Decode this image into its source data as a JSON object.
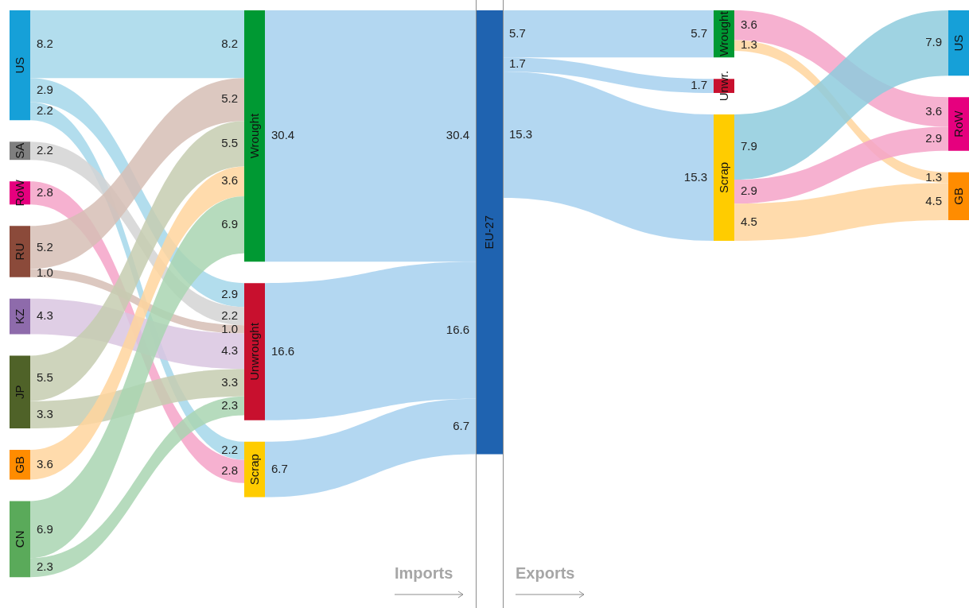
{
  "chart_data": {
    "type": "other",
    "categories": [
      "US",
      "SA",
      "RoW",
      "RU",
      "KZ",
      "JP",
      "GB",
      "CN",
      "Wrought",
      "Unwrought",
      "Scrap",
      "EU-27",
      "Wrought",
      "Unwr.",
      "Scrap",
      "US",
      "RoW",
      "GB"
    ],
    "colors": [
      "#16a0d8",
      "#7f7f7f",
      "#e6007e",
      "#8b4a3a",
      "#8e6bab",
      "#4f6228",
      "#ff8c00",
      "#5aaa5a",
      "#009933",
      "#c8102e",
      "#ffcc00",
      "#1f63b0",
      "#009933",
      "#c8102e",
      "#ffcc00",
      "#16a0d8",
      "#e6007e",
      "#ff8c00"
    ],
    "series": [
      {
        "color": "#a5d7ea",
        "values": [
          null,
          null,
          null,
          null,
          null,
          null,
          null,
          null,
          8.2,
          2.9,
          2.2,
          null,
          null,
          null,
          null,
          null,
          null,
          null
        ],
        "value_labels": [
          null,
          null,
          null,
          null,
          null,
          null,
          null,
          null,
          "8.2",
          "2.9",
          "2.2",
          null,
          null,
          null,
          null,
          null,
          null,
          null
        ]
      },
      {
        "color": "#d3d3d3",
        "values": [
          null,
          null,
          null,
          null,
          null,
          null,
          null,
          null,
          null,
          2.2,
          null,
          null,
          null,
          null,
          null,
          null,
          null,
          null
        ],
        "value_labels": [
          null,
          null,
          null,
          null,
          null,
          null,
          null,
          null,
          null,
          "2.2",
          null,
          null,
          null,
          null,
          null,
          null,
          null,
          null
        ]
      },
      {
        "color": "#f5a3c8",
        "values": [
          null,
          null,
          null,
          null,
          null,
          null,
          null,
          null,
          null,
          null,
          2.8,
          null,
          null,
          null,
          null,
          null,
          null,
          null
        ],
        "value_labels": [
          null,
          null,
          null,
          null,
          null,
          null,
          null,
          null,
          null,
          null,
          "2.8",
          null,
          null,
          null,
          null,
          null,
          null,
          null
        ]
      },
      {
        "color": "#d6beb5",
        "values": [
          null,
          null,
          null,
          null,
          null,
          null,
          null,
          null,
          5.2,
          1.0,
          null,
          null,
          null,
          null,
          null,
          null,
          null,
          null
        ],
        "value_labels": [
          null,
          null,
          null,
          null,
          null,
          null,
          null,
          null,
          "5.2",
          "1.0",
          null,
          null,
          null,
          null,
          null,
          null,
          null,
          null
        ]
      },
      {
        "color": "#d9c5e0",
        "values": [
          null,
          null,
          null,
          null,
          null,
          null,
          null,
          null,
          null,
          4.3,
          null,
          null,
          null,
          null,
          null,
          null,
          null,
          null
        ],
        "value_labels": [
          null,
          null,
          null,
          null,
          null,
          null,
          null,
          null,
          null,
          "4.3",
          null,
          null,
          null,
          null,
          null,
          null,
          null,
          null
        ]
      },
      {
        "color": "#c5cdb0",
        "values": [
          null,
          null,
          null,
          null,
          null,
          null,
          null,
          null,
          5.5,
          3.3,
          null,
          null,
          null,
          null,
          null,
          null,
          null,
          null
        ],
        "value_labels": [
          null,
          null,
          null,
          null,
          null,
          null,
          null,
          null,
          "5.5",
          "3.3",
          null,
          null,
          null,
          null,
          null,
          null,
          null,
          null
        ]
      },
      {
        "color": "#ffd59e",
        "values": [
          null,
          null,
          null,
          null,
          null,
          null,
          null,
          null,
          3.6,
          null,
          null,
          null,
          null,
          null,
          null,
          null,
          null,
          null
        ],
        "value_labels": [
          null,
          null,
          null,
          null,
          null,
          null,
          null,
          null,
          "3.6",
          null,
          null,
          null,
          null,
          null,
          null,
          null,
          null,
          null
        ]
      },
      {
        "color": "#a9d5b2",
        "values": [
          null,
          null,
          null,
          null,
          null,
          null,
          null,
          null,
          6.9,
          2.3,
          null,
          null,
          null,
          null,
          null,
          null,
          null,
          null
        ],
        "value_labels": [
          null,
          null,
          null,
          null,
          null,
          null,
          null,
          null,
          "6.9",
          "2.3",
          null,
          null,
          null,
          null,
          null,
          null,
          null,
          null
        ]
      },
      {
        "color": "#a6d0ef",
        "values": [
          null,
          null,
          null,
          null,
          null,
          null,
          null,
          null,
          null,
          null,
          null,
          30.4,
          null,
          null,
          null,
          null,
          null,
          null
        ],
        "value_labels": [
          null,
          null,
          null,
          null,
          null,
          null,
          null,
          null,
          null,
          null,
          null,
          "30.4",
          null,
          null,
          null,
          null,
          null,
          null
        ]
      },
      {
        "color": "#a6d0ef",
        "values": [
          null,
          null,
          null,
          null,
          null,
          null,
          null,
          null,
          null,
          null,
          null,
          16.6,
          null,
          null,
          null,
          null,
          null,
          null
        ],
        "value_labels": [
          null,
          null,
          null,
          null,
          null,
          null,
          null,
          null,
          null,
          null,
          null,
          "16.6",
          null,
          null,
          null,
          null,
          null,
          null
        ]
      },
      {
        "color": "#a6d0ef",
        "values": [
          null,
          null,
          null,
          null,
          null,
          null,
          null,
          null,
          null,
          null,
          null,
          6.7,
          null,
          null,
          null,
          null,
          null,
          null
        ],
        "value_labels": [
          null,
          null,
          null,
          null,
          null,
          null,
          null,
          null,
          null,
          null,
          null,
          "6.7",
          null,
          null,
          null,
          null,
          null,
          null
        ]
      },
      {
        "color": "#a6d0ef",
        "values": [
          null,
          null,
          null,
          null,
          null,
          null,
          null,
          null,
          null,
          null,
          null,
          null,
          5.7,
          1.7,
          15.3,
          null,
          null,
          null
        ],
        "value_labels": [
          null,
          null,
          null,
          null,
          null,
          null,
          null,
          null,
          null,
          null,
          null,
          null,
          "5.7",
          "1.7",
          "15.3",
          null,
          null,
          null
        ]
      },
      {
        "colors": [
          null,
          null,
          null,
          null,
          null,
          null,
          null,
          null,
          null,
          null,
          null,
          null,
          null,
          null,
          null,
          null,
          "#f5a3c8",
          "#ffd59e"
        ],
        "values": [
          null,
          null,
          null,
          null,
          null,
          null,
          null,
          null,
          null,
          null,
          null,
          null,
          null,
          null,
          null,
          null,
          3.6,
          1.3
        ],
        "value_labels": [
          null,
          null,
          null,
          null,
          null,
          null,
          null,
          null,
          null,
          null,
          null,
          null,
          null,
          null,
          null,
          null,
          "3.6",
          "1.3"
        ]
      },
      {
        "values": [
          null,
          null,
          null,
          null,
          null,
          null,
          null,
          null,
          null,
          null,
          null,
          null,
          null,
          null,
          null,
          null,
          null,
          null
        ]
      },
      {
        "colors": [
          null,
          null,
          null,
          null,
          null,
          null,
          null,
          null,
          null,
          null,
          null,
          null,
          null,
          null,
          null,
          "#8ecbdd",
          "#f5a3c8",
          "#ffd59e"
        ],
        "values": [
          null,
          null,
          null,
          null,
          null,
          null,
          null,
          null,
          null,
          null,
          null,
          null,
          null,
          null,
          null,
          7.9,
          2.9,
          4.5
        ],
        "value_labels": [
          null,
          null,
          null,
          null,
          null,
          null,
          null,
          null,
          null,
          null,
          null,
          null,
          null,
          null,
          null,
          "7.9",
          "2.9",
          "4.5"
        ]
      }
    ],
    "annotations": [
      "Imports",
      "Exports"
    ]
  }
}
